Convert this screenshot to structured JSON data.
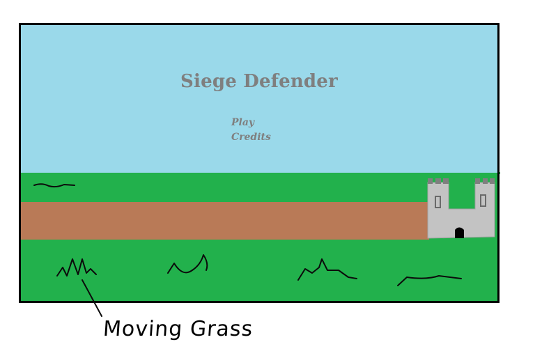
{
  "game": {
    "title": "Siege Defender",
    "menu": {
      "items": [
        {
          "label": "Play"
        },
        {
          "label": "Credits"
        }
      ]
    }
  },
  "annotation": {
    "label": "Moving Grass"
  },
  "scene": {
    "sprites": [
      "castle-icon",
      "grass-tuft-icon"
    ]
  },
  "colors": {
    "sky": "#9ad9ea",
    "grass": "#22b14c",
    "path": "#b97a57",
    "castle": "#c3c3c3",
    "castle_dark": "#7f7f7f",
    "title_text": "#7f7f7f",
    "menu_text": "#7f7f7f",
    "frame_border": "#000000"
  }
}
